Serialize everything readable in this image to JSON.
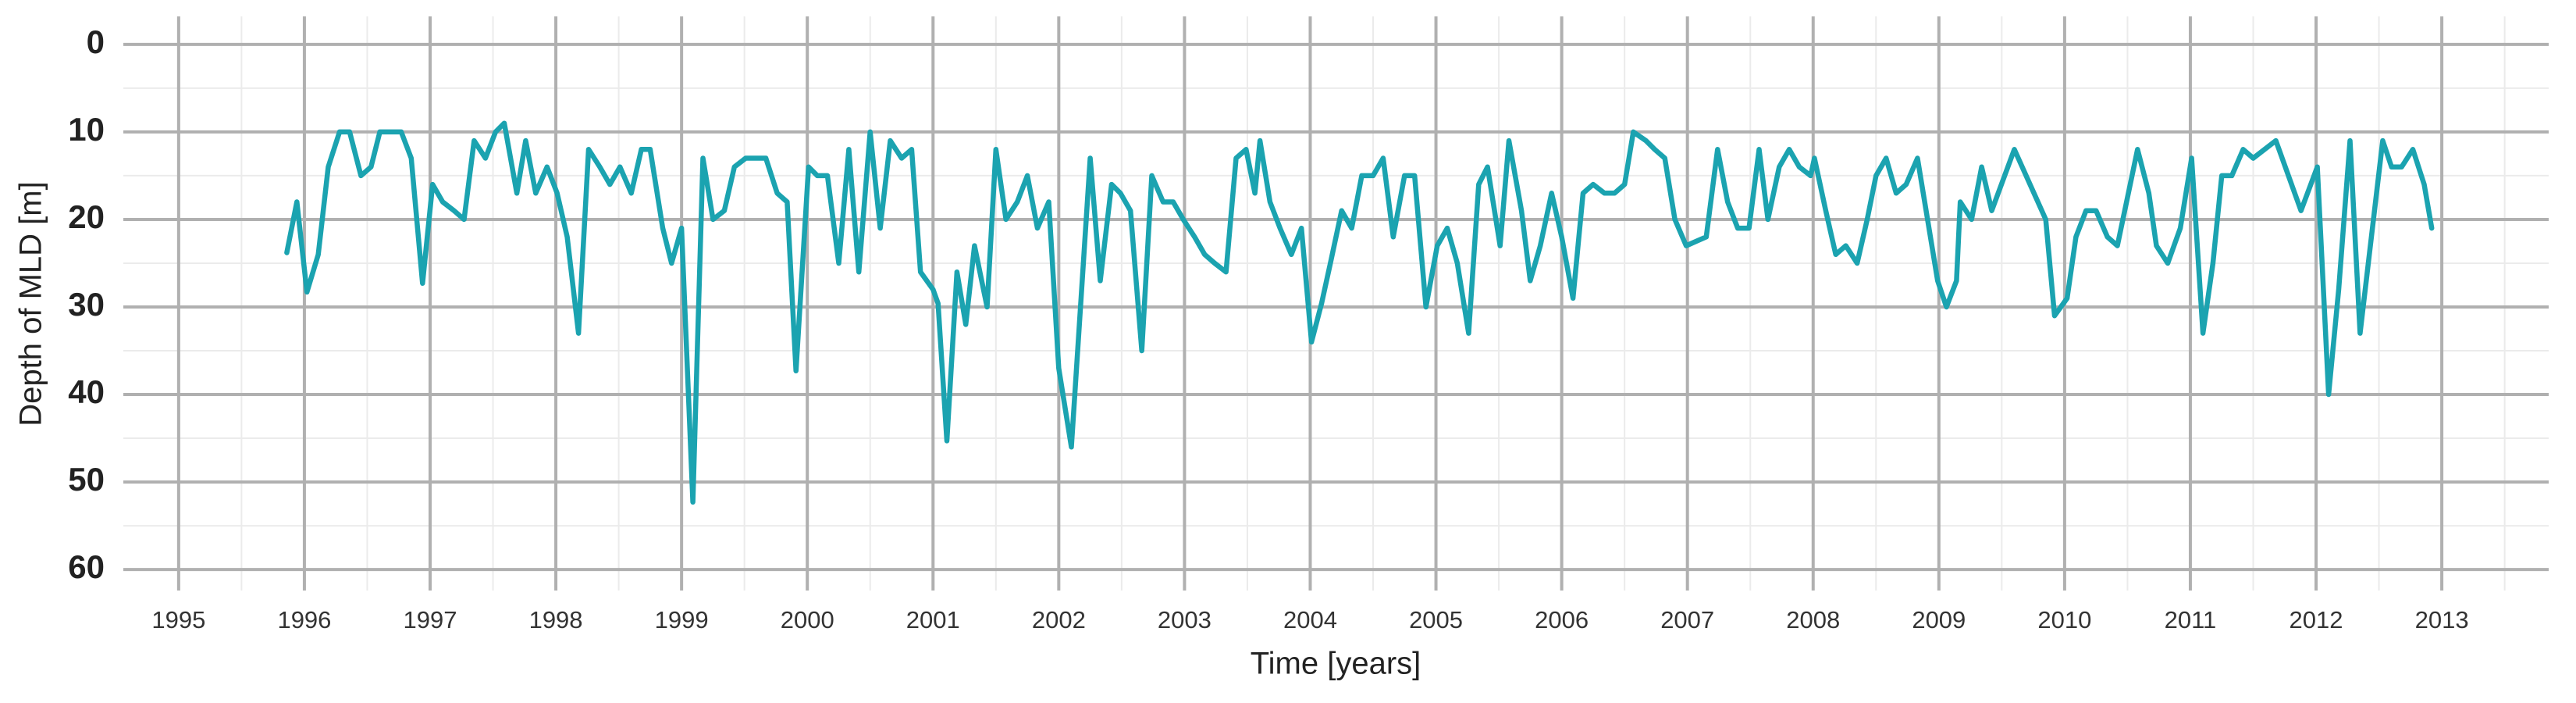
{
  "chart_data": {
    "type": "line",
    "x_label": "Time [years]",
    "y_label": "Depth of MLD [m]",
    "xlim": [
      1994.56,
      2013.85
    ],
    "ylim": [
      -3.2,
      62.4
    ],
    "y_inverted": true,
    "xticks": [
      1995,
      1996,
      1997,
      1998,
      1999,
      2000,
      2001,
      2002,
      2003,
      2004,
      2005,
      2006,
      2007,
      2008,
      2009,
      2010,
      2011,
      2012,
      2013
    ],
    "yticks": [
      0,
      10,
      20,
      30,
      40,
      50,
      60
    ],
    "x_minor_ticks": [
      1995.5,
      1996.5,
      1997.5,
      1998.5,
      1999.5,
      2000.5,
      2001.5,
      2002.5,
      2003.5,
      2004.5,
      2005.5,
      2006.5,
      2007.5,
      2008.5,
      2009.5,
      2010.5,
      2011.5,
      2012.5,
      2013.5
    ],
    "y_minor_ticks": [
      5,
      15,
      25,
      35,
      45,
      55
    ],
    "grid": true,
    "color": "#1ba3b0",
    "x": [
      1995.86,
      1995.94,
      1996.02,
      1996.11,
      1996.19,
      1996.28,
      1996.36,
      1996.45,
      1996.53,
      1996.6,
      1996.69,
      1996.77,
      1996.85,
      1996.94,
      1997.02,
      1997.1,
      1997.19,
      1997.27,
      1997.35,
      1997.44,
      1997.52,
      1997.59,
      1997.69,
      1997.76,
      1997.84,
      1997.93,
      1998.01,
      1998.09,
      1998.18,
      1998.26,
      1998.35,
      1998.43,
      1998.51,
      1998.6,
      1998.68,
      1998.75,
      1998.85,
      1998.92,
      1999.0,
      1999.09,
      1999.17,
      1999.25,
      1999.34,
      1999.42,
      1999.51,
      1999.59,
      1999.67,
      1999.76,
      1999.84,
      1999.91,
      2000.01,
      2000.08,
      2000.16,
      2000.25,
      2000.33,
      2000.41,
      2000.5,
      2000.58,
      2000.66,
      2000.75,
      2000.83,
      2000.9,
      2001.0,
      2001.04,
      2001.11,
      2001.19,
      2001.26,
      2001.33,
      2001.43,
      2001.5,
      2001.58,
      2001.67,
      2001.75,
      2001.83,
      2001.92,
      2002.0,
      2002.1,
      2002.25,
      2002.33,
      2002.42,
      2002.49,
      2002.57,
      2002.66,
      2002.74,
      2002.83,
      2002.91,
      2002.99,
      2003.08,
      2003.16,
      2003.24,
      2003.33,
      2003.41,
      2003.49,
      2003.56,
      2003.6,
      2003.68,
      2003.76,
      2003.85,
      2003.93,
      2004.01,
      2004.09,
      2004.16,
      2004.25,
      2004.33,
      2004.41,
      2004.5,
      2004.58,
      2004.66,
      2004.75,
      2004.83,
      2004.92,
      2005.01,
      2005.09,
      2005.17,
      2005.26,
      2005.34,
      2005.41,
      2005.51,
      2005.58,
      2005.68,
      2005.75,
      2005.83,
      2005.92,
      2006.0,
      2006.09,
      2006.17,
      2006.25,
      2006.34,
      2006.42,
      2006.5,
      2006.57,
      2006.67,
      2006.74,
      2006.82,
      2006.9,
      2006.99,
      2007.07,
      2007.15,
      2007.24,
      2007.32,
      2007.4,
      2007.49,
      2007.57,
      2007.64,
      2007.73,
      2007.81,
      2007.89,
      2007.98,
      2008.01,
      2008.1,
      2008.18,
      2008.26,
      2008.35,
      2008.43,
      2008.5,
      2008.58,
      2008.66,
      2008.74,
      2008.83,
      2008.91,
      2008.99,
      2009.06,
      2009.14,
      2009.17,
      2009.26,
      2009.34,
      2009.42,
      2009.6,
      2009.85,
      2009.92,
      2010.02,
      2010.09,
      2010.17,
      2010.25,
      2010.34,
      2010.42,
      2010.58,
      2010.67,
      2010.73,
      2010.82,
      2010.92,
      2011.01,
      2011.1,
      2011.18,
      2011.25,
      2011.33,
      2011.42,
      2011.5,
      2011.68,
      2011.88,
      2012.01,
      2012.1,
      2012.18,
      2012.27,
      2012.35,
      2012.44,
      2012.53,
      2012.6,
      2012.68,
      2012.77,
      2012.86,
      2012.92
    ],
    "values": [
      23.8,
      18,
      28.3,
      24,
      14,
      10,
      10,
      15,
      14,
      10,
      10,
      10,
      13,
      27.3,
      16,
      18,
      19,
      20,
      11,
      13,
      10,
      9,
      17,
      11,
      17,
      14,
      17,
      22,
      33,
      12,
      14,
      16,
      14,
      17,
      12,
      12,
      21,
      25,
      21,
      52.3,
      13,
      20,
      19,
      14,
      13,
      13,
      13,
      17,
      18,
      37.3,
      14,
      15,
      15,
      25,
      12,
      26,
      10,
      21,
      11,
      13,
      12,
      26,
      28,
      29.6,
      45.3,
      26,
      32,
      23,
      30,
      12,
      20,
      18,
      15,
      21,
      18,
      37,
      46,
      13,
      27,
      16,
      17,
      19,
      35,
      15,
      18,
      18,
      20,
      22,
      24,
      25,
      26,
      13,
      12,
      17,
      11,
      18,
      21,
      24,
      21,
      34,
      29.6,
      25,
      19,
      21,
      15,
      15,
      13,
      22,
      15,
      15,
      30,
      23,
      21,
      25,
      33,
      16,
      14,
      23,
      11,
      19,
      27,
      23,
      17,
      22,
      29,
      17,
      16,
      17,
      17,
      16,
      10,
      11,
      12,
      13,
      20,
      23,
      22.5,
      22,
      12,
      18,
      21,
      21,
      12,
      20,
      14,
      12,
      14,
      15,
      13,
      19,
      24,
      23,
      25,
      20,
      15,
      13,
      17,
      16,
      13,
      20,
      27,
      30,
      27,
      18,
      20,
      14,
      19,
      12,
      20,
      31,
      29,
      22,
      19,
      19,
      22,
      23,
      12,
      17,
      23,
      25,
      21,
      13,
      33,
      25,
      15,
      15,
      12,
      13,
      11,
      19,
      14,
      40,
      28,
      11,
      33,
      22,
      11,
      14,
      14,
      12,
      16,
      21
    ]
  }
}
